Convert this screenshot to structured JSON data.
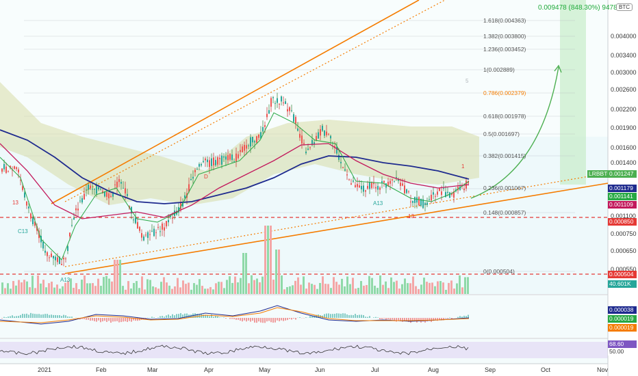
{
  "symbol_tag": "BTC",
  "target_label": "0.009478 (848.30%) 9478",
  "price_axis": [
    "0.004000",
    "0.003400",
    "0.003000",
    "0.002600",
    "0.002200",
    "0.001900",
    "0.001600",
    "0.001400",
    "0.001100",
    "0.000750",
    "0.000650",
    "0.000550"
  ],
  "price_tags": [
    {
      "text": "0.001179",
      "color": "#1e2a8e"
    },
    {
      "text": "0.001141",
      "color": "#27a844"
    },
    {
      "text": "0.001109",
      "color": "#c2185b"
    },
    {
      "text": "0.000850",
      "color": "#e53935"
    },
    {
      "text": "0.000504",
      "color": "#e53935"
    },
    {
      "text": "40.601K",
      "color": "#26a69a"
    }
  ],
  "current_tag": {
    "symbol": "LRBBTC",
    "price": "0.001247",
    "color": "#4caf50"
  },
  "fib_levels": [
    {
      "label": "1.618(0.004363)"
    },
    {
      "label": "1.382(0.003800)"
    },
    {
      "label": "1.236(0.003452)"
    },
    {
      "label": "1(0.002889)"
    },
    {
      "label": "0.786(0.002379)"
    },
    {
      "label": "0.618(0.001978)"
    },
    {
      "label": "0.5(0.001697)"
    },
    {
      "label": "0.382(0.001415)"
    },
    {
      "label": "0.236(0.001067)"
    },
    {
      "label": "0.148(0.000857)"
    },
    {
      "label": "0(0.000504)"
    }
  ],
  "macd_tags": [
    {
      "text": "0.000038",
      "color": "#1e2a8e"
    },
    {
      "text": "0.000019",
      "color": "#27a844"
    },
    {
      "text": "0.000019",
      "color": "#f57c00"
    }
  ],
  "rsi_tags": [
    {
      "text": "68.60",
      "color": "#7e57c2"
    },
    {
      "text": "50.00",
      "color": "#ffffff"
    }
  ],
  "months": [
    "2021",
    "Feb",
    "Mar",
    "Apr",
    "May",
    "Jun",
    "Jul",
    "Aug",
    "Sep",
    "Oct",
    "Nov"
  ],
  "chart_annotations": [
    "13",
    "C13",
    "A13",
    "A13",
    "13",
    "5",
    "1",
    "D"
  ],
  "colors": {
    "up": "#26a69a",
    "down": "#ef5350",
    "wick_up": "#2e7d32",
    "wick_down": "#c62828",
    "trend": "#f57c00",
    "ma_blue": "#1e2a8e",
    "ma_red": "#c2185b",
    "ma_green": "#27a844",
    "cloud": "#d7dca8",
    "projection": "#4caf50",
    "support": "#e53935",
    "rsi": "#7e57c2"
  }
}
